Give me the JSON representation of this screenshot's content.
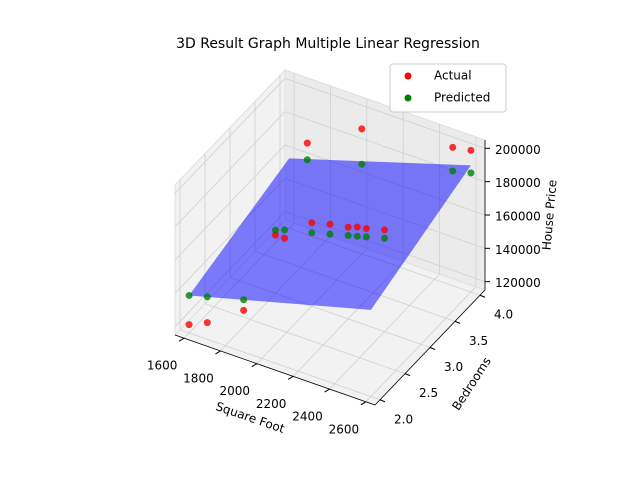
{
  "chart_data": {
    "type": "scatter3d",
    "title": "3D Result Graph Multiple Linear Regression",
    "x_label": "Square Foot",
    "y_label": "Bedrooms",
    "z_label": "House Price",
    "xlim": [
      1550,
      2650
    ],
    "ylim": [
      1.9,
      4.1
    ],
    "zlim": [
      115000,
      205000
    ],
    "xticks": [
      1600,
      1800,
      2000,
      2200,
      2400,
      2600
    ],
    "yticks": [
      {
        "value": 2,
        "label": "2.0"
      },
      2.5,
      {
        "value": 3,
        "label": "3.0"
      },
      3.5,
      {
        "value": 4,
        "label": "4.0"
      }
    ],
    "zticks": [
      120000,
      140000,
      160000,
      180000,
      200000
    ],
    "grid": true,
    "legend": "upper right",
    "plane": {
      "color": "#0000ff",
      "x": [
        1600,
        2600,
        2600,
        1600
      ],
      "y": [
        2,
        2,
        4,
        4
      ],
      "z": [
        137500,
        167000,
        191000,
        157000
      ]
    },
    "series": [
      {
        "name": "Actual",
        "color": "#ff0000",
        "x": [
          1600,
          1700,
          1900,
          2000,
          2100,
          2200,
          2250,
          2300,
          1800,
          1850,
          2000,
          2500,
          2600,
          1700,
          2400
        ],
        "y": [
          2,
          2,
          2,
          3,
          3,
          3,
          3,
          3,
          3,
          3,
          4,
          4,
          4,
          4,
          3
        ],
        "z": [
          120000,
          125000,
          140000,
          165000,
          168000,
          170000,
          172000,
          173000,
          150000,
          150000,
          190000,
          198000,
          200000,
          170000,
          176000
        ]
      },
      {
        "name": "Predicted",
        "color": "#008000",
        "x": [
          1600,
          1700,
          1900,
          2000,
          2100,
          2200,
          2250,
          2300,
          1800,
          1850,
          2000,
          2500,
          2600,
          1700,
          2400
        ],
        "y": [
          2,
          2,
          2,
          3,
          3,
          3,
          3,
          3,
          3,
          3,
          4,
          4,
          4,
          4,
          3
        ],
        "z": [
          137500,
          140500,
          146400,
          159000,
          162000,
          165000,
          166500,
          168000,
          153000,
          155000,
          168800,
          183800,
          186500,
          160000,
          171000
        ]
      }
    ]
  }
}
